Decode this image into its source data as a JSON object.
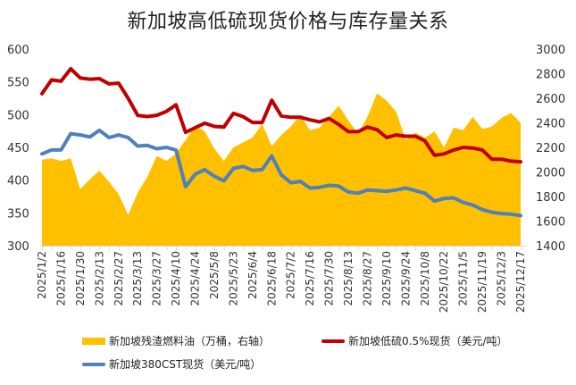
{
  "chart_data": {
    "type": "line",
    "title": "新加坡高低硫现货价格与库存量关系",
    "xlabel": "",
    "ylabel": "",
    "y_left": {
      "range": [
        300,
        600
      ],
      "ticks": [
        "300",
        "350",
        "400",
        "450",
        "500",
        "550",
        "600"
      ]
    },
    "y_right": {
      "range": [
        1400,
        3000
      ],
      "ticks": [
        "1400",
        "1600",
        "1800",
        "2000",
        "2200",
        "2400",
        "2600",
        "2800",
        "3000"
      ]
    },
    "grid": false,
    "legend_position": "bottom",
    "x_tick_labels": [
      "2025/1/2",
      "2025/1/16",
      "2025/1/30",
      "2025/2/13",
      "2025/2/27",
      "2025/3/13",
      "2025/3/27",
      "2025/4/10",
      "2025/4/24",
      "2025/5/8",
      "2025/5/23",
      "2025/6/4",
      "2025/6/18",
      "2025/7/2",
      "2025/7/16",
      "2025/7/30",
      "2025/8/13",
      "2025/8/27",
      "2025/9/10",
      "2025/9/24",
      "2025/10/8",
      "2025/10/22",
      "2025/11/5",
      "2025/11/19",
      "2025/12/3",
      "2025/12/17"
    ],
    "x": [
      "2025/1/2",
      "2025/1/9",
      "2025/1/16",
      "2025/1/23",
      "2025/1/30",
      "2025/2/6",
      "2025/2/13",
      "2025/2/20",
      "2025/2/27",
      "2025/3/6",
      "2025/3/13",
      "2025/3/20",
      "2025/3/27",
      "2025/4/3",
      "2025/4/10",
      "2025/4/17",
      "2025/4/24",
      "2025/5/1",
      "2025/5/8",
      "2025/5/15",
      "2025/5/23",
      "2025/5/29",
      "2025/6/4",
      "2025/6/11",
      "2025/6/18",
      "2025/6/25",
      "2025/7/2",
      "2025/7/9",
      "2025/7/16",
      "2025/7/23",
      "2025/7/30",
      "2025/8/6",
      "2025/8/13",
      "2025/8/20",
      "2025/8/27",
      "2025/9/3",
      "2025/9/10",
      "2025/9/17",
      "2025/9/24",
      "2025/10/1",
      "2025/10/8",
      "2025/10/15",
      "2025/10/22",
      "2025/10/29",
      "2025/11/5",
      "2025/11/12",
      "2025/11/19",
      "2025/11/26",
      "2025/12/3",
      "2025/12/10",
      "2025/12/17"
    ],
    "series": [
      {
        "name": "新加坡残渣燃料油（万桶，右轴）",
        "type": "area",
        "axis": "right",
        "color": "#FFC000",
        "values": [
          2100,
          2110,
          2090,
          2110,
          1860,
          1940,
          2010,
          1920,
          1820,
          1650,
          1830,
          1960,
          2130,
          2090,
          2150,
          2260,
          2380,
          2330,
          2190,
          2090,
          2200,
          2240,
          2280,
          2390,
          2210,
          2300,
          2370,
          2460,
          2340,
          2360,
          2450,
          2540,
          2420,
          2310,
          2450,
          2640,
          2580,
          2490,
          2260,
          2320,
          2280,
          2330,
          2200,
          2360,
          2340,
          2450,
          2350,
          2370,
          2440,
          2480,
          2400
        ]
      },
      {
        "name": "新加坡低硫0.5%现货（美元/吨）",
        "type": "line",
        "axis": "left",
        "color": "#C00000",
        "values": [
          532,
          553,
          551,
          570,
          556,
          554,
          555,
          547,
          548,
          525,
          499,
          497,
          499,
          505,
          515,
          473,
          480,
          487,
          482,
          481,
          502,
          497,
          488,
          488,
          522,
          498,
          496,
          496,
          492,
          489,
          494,
          485,
          474,
          474,
          481,
          477,
          465,
          469,
          467,
          467,
          460,
          438,
          440,
          446,
          450,
          449,
          446,
          432,
          432,
          429,
          428
        ]
      },
      {
        "name": "新加坡380CST现货（美元/吨）",
        "type": "line",
        "axis": "left",
        "color": "#4F81BD",
        "values": [
          440,
          446,
          446,
          471,
          469,
          466,
          476,
          465,
          469,
          465,
          452,
          453,
          448,
          450,
          446,
          390,
          409,
          416,
          406,
          399,
          418,
          421,
          415,
          416,
          437,
          408,
          396,
          398,
          388,
          389,
          392,
          391,
          382,
          380,
          385,
          384,
          383,
          385,
          388,
          384,
          380,
          368,
          372,
          373,
          366,
          362,
          355,
          351,
          349,
          348,
          346
        ]
      }
    ]
  },
  "legend": {
    "items": [
      {
        "label": "新加坡残渣燃料油（万桶，右轴）"
      },
      {
        "label": "新加坡低硫0.5%现货（美元/吨）"
      },
      {
        "label": "新加坡380CST现货（美元/吨）"
      }
    ]
  }
}
